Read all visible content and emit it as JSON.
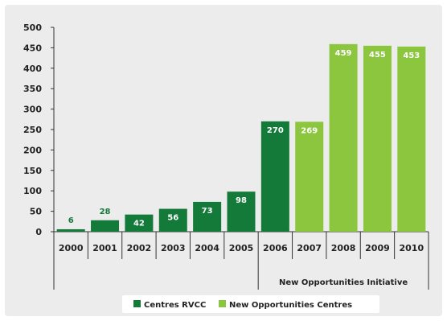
{
  "chart_data": {
    "type": "bar",
    "categories": [
      "2000",
      "2001",
      "2002",
      "2003",
      "2004",
      "2005",
      "2006",
      "2007",
      "2008",
      "2009",
      "2010"
    ],
    "values": [
      6,
      28,
      42,
      56,
      73,
      98,
      270,
      269,
      459,
      455,
      453
    ],
    "series_of_bar": [
      "Centres RVCC",
      "Centres RVCC",
      "Centres RVCC",
      "Centres RVCC",
      "Centres RVCC",
      "Centres RVCC",
      "Centres RVCC",
      "New Opportunities Centres",
      "New Opportunities Centres",
      "New Opportunities Centres",
      "New Opportunities Centres"
    ],
    "series": [
      {
        "name": "Centres RVCC",
        "color": "#137a3a"
      },
      {
        "name": "New Opportunities Centres",
        "color": "#8cc63f"
      }
    ],
    "ylim": [
      0,
      500
    ],
    "yticks": [
      0,
      50,
      100,
      150,
      200,
      250,
      300,
      350,
      400,
      450,
      500
    ],
    "grid": false,
    "legend_position": "bottom-center",
    "annotations": [
      {
        "text": "New Opportunities Initiative",
        "spans": [
          "2006",
          "2010"
        ]
      }
    ]
  }
}
